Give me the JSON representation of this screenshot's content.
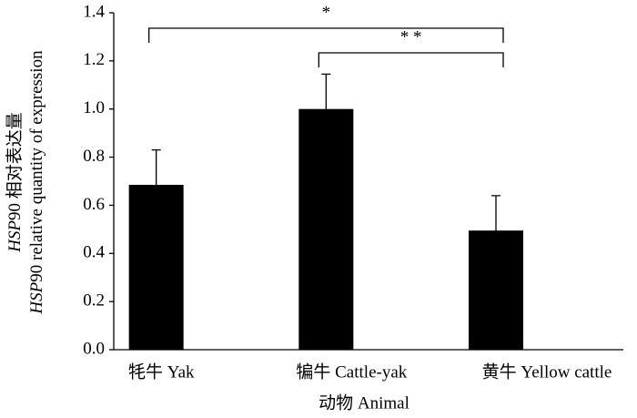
{
  "chart_data": {
    "type": "bar",
    "y_label": [
      [
        "HSP",
        "90 相对表达量"
      ],
      [
        "HSP",
        "90 relative quantity of expression"
      ]
    ],
    "x_label": "动物 Animal",
    "categories": [
      "牦牛 Yak",
      "犏牛 Cattle-yak",
      "黄牛 Yellow cattle"
    ],
    "values": [
      0.685,
      1.0,
      0.495
    ],
    "errors": [
      0.145,
      0.145,
      0.145
    ],
    "color": "#000000",
    "ylim": [
      0,
      1.4
    ],
    "yticks": [
      {
        "value": 0,
        "label": "0.0"
      },
      0.2,
      0.4,
      0.6,
      0.8,
      {
        "value": 1,
        "label": "1.0"
      },
      1.2,
      1.4
    ],
    "grid": false,
    "annotations": [
      {
        "text": "*",
        "from": 0,
        "to": 2
      },
      {
        "text": "* *",
        "from": 1,
        "to": 2
      }
    ]
  }
}
